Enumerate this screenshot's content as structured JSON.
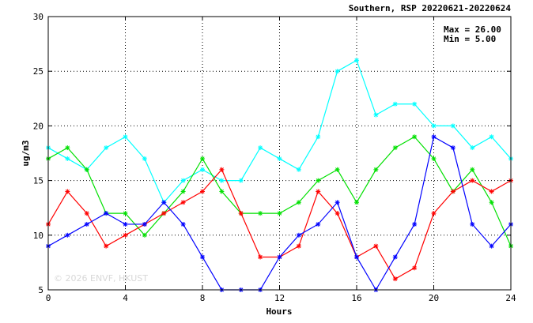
{
  "chart_data": {
    "type": "line",
    "title": "Southern, RSP 20220621-20220624",
    "xlabel": "Hours",
    "ylabel": "ug/m3",
    "xlim": [
      0,
      24
    ],
    "ylim": [
      5,
      30
    ],
    "xticks": [
      0,
      4,
      8,
      12,
      16,
      20,
      24
    ],
    "yticks": [
      5,
      10,
      15,
      20,
      25,
      30
    ],
    "grid": true,
    "stats": {
      "max_text": "Max = 26.00",
      "min_text": "Min =  5.00"
    },
    "watermark": "© 2026  ENVF, HKUST",
    "x": [
      0,
      1,
      2,
      3,
      4,
      5,
      6,
      7,
      8,
      9,
      10,
      11,
      12,
      13,
      14,
      15,
      16,
      17,
      18,
      19,
      20,
      21,
      22,
      23,
      24
    ],
    "series": [
      {
        "color": "#00ffff",
        "values": [
          18,
          17,
          16,
          18,
          19,
          17,
          13,
          15,
          16,
          15,
          15,
          18,
          17,
          16,
          19,
          25,
          26,
          21,
          22,
          22,
          20,
          20,
          18,
          19,
          17
        ]
      },
      {
        "color": "#00e000",
        "values": [
          17,
          18,
          16,
          12,
          12,
          10,
          12,
          14,
          17,
          14,
          12,
          12,
          12,
          13,
          15,
          16,
          13,
          16,
          18,
          19,
          17,
          14,
          16,
          13,
          9
        ]
      },
      {
        "color": "#ff0000",
        "values": [
          11,
          14,
          12,
          9,
          10,
          11,
          12,
          13,
          14,
          16,
          12,
          8,
          8,
          9,
          14,
          12,
          8,
          9,
          6,
          7,
          12,
          14,
          15,
          14,
          15
        ]
      },
      {
        "color": "#0000ff",
        "values": [
          9,
          10,
          11,
          12,
          11,
          11,
          13,
          11,
          8,
          5,
          5,
          5,
          8,
          10,
          11,
          13,
          8,
          5,
          8,
          11,
          19,
          18,
          11,
          9,
          11
        ]
      }
    ]
  }
}
